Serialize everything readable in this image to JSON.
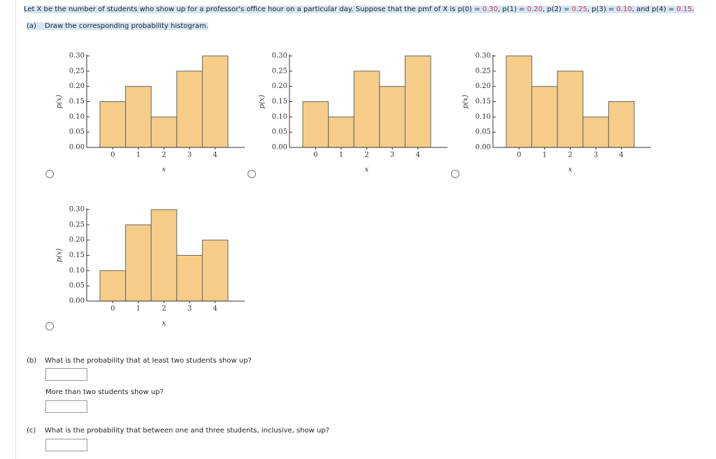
{
  "intro": {
    "lead": "Let X be the number of students who show up for a professor's office hour on a particular day. Suppose that the pmf of X is",
    "terms": [
      {
        "name": "p(0) =",
        "value": "0.30"
      },
      {
        "name": "p(1) =",
        "value": "0.20"
      },
      {
        "name": "p(2) =",
        "value": "0.25"
      },
      {
        "name": "p(3) =",
        "value": "0.10"
      },
      {
        "name": "p(4) =",
        "value": "0.15"
      }
    ],
    "separators": [
      ",",
      ",",
      ",",
      ", and"
    ],
    "end": "."
  },
  "part_a": {
    "label": "(a)",
    "text": "Draw the corresponding probability histogram."
  },
  "part_b": {
    "label": "(b)",
    "text": "What is the probability that at least two students show up?",
    "followup": "More than two students show up?"
  },
  "part_c": {
    "label": "(c)",
    "text": "What is the probability that between one and three students, inclusive, show up?"
  },
  "chart_data": [
    {
      "type": "bar",
      "categories": [
        "0",
        "1",
        "2",
        "3",
        "4"
      ],
      "values": [
        0.15,
        0.2,
        0.1,
        0.25,
        0.3
      ],
      "color": "#f5cd88",
      "xlabel": "x",
      "ylabel": "p(x)",
      "ylim": [
        0,
        0.3
      ],
      "yticks": [
        {
          "value": 0,
          "label": "0.00"
        },
        0.05,
        {
          "value": 0.1,
          "label": "0.10"
        },
        0.15,
        {
          "value": 0.2,
          "label": "0.20"
        },
        0.25,
        {
          "value": 0.3,
          "label": "0.30"
        }
      ]
    },
    {
      "type": "bar",
      "categories": [
        "0",
        "1",
        "2",
        "3",
        "4"
      ],
      "values": [
        0.15,
        0.1,
        0.25,
        0.2,
        0.3
      ],
      "color": "#f5cd88",
      "xlabel": "x",
      "ylabel": "p(x)",
      "ylim": [
        0,
        0.3
      ],
      "yticks": [
        {
          "value": 0,
          "label": "0.00"
        },
        0.05,
        {
          "value": 0.1,
          "label": "0.10"
        },
        0.15,
        {
          "value": 0.2,
          "label": "0.20"
        },
        0.25,
        {
          "value": 0.3,
          "label": "0.30"
        }
      ]
    },
    {
      "type": "bar",
      "categories": [
        "0",
        "1",
        "2",
        "3",
        "4"
      ],
      "values": [
        0.3,
        0.2,
        0.25,
        0.1,
        0.15
      ],
      "color": "#f5cd88",
      "xlabel": "x",
      "ylabel": "p(x)",
      "ylim": [
        0,
        0.3
      ],
      "yticks": [
        {
          "value": 0,
          "label": "0.00"
        },
        0.05,
        {
          "value": 0.1,
          "label": "0.10"
        },
        0.15,
        {
          "value": 0.2,
          "label": "0.20"
        },
        0.25,
        {
          "value": 0.3,
          "label": "0.30"
        }
      ]
    },
    {
      "type": "bar",
      "categories": [
        "0",
        "1",
        "2",
        "3",
        "4"
      ],
      "values": [
        0.1,
        0.25,
        0.3,
        0.15,
        0.2
      ],
      "color": "#f5cd88",
      "xlabel": "x",
      "ylabel": "p(x)",
      "ylim": [
        0,
        0.3
      ],
      "yticks": [
        {
          "value": 0,
          "label": "0.00"
        },
        0.05,
        {
          "value": 0.1,
          "label": "0.10"
        },
        0.15,
        {
          "value": 0.2,
          "label": "0.20"
        },
        0.25,
        {
          "value": 0.3,
          "label": "0.30"
        }
      ]
    }
  ]
}
